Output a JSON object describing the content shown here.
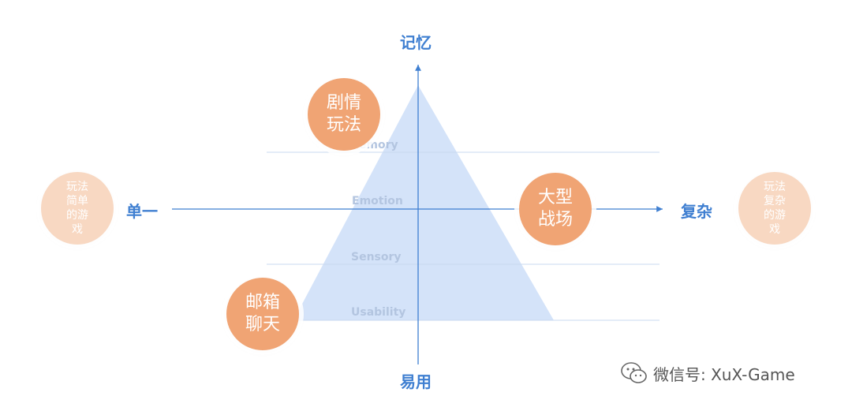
{
  "axes": {
    "top": "记忆",
    "bottom": "易用",
    "left": "单一",
    "right": "复杂"
  },
  "levels": [
    "Memory",
    "Emotion",
    "Sensory",
    "Usability"
  ],
  "circles": {
    "plot_gameplay": [
      "剧情",
      "玩法"
    ],
    "battlefield": [
      "大型",
      "战场"
    ],
    "mail_chat": [
      "邮箱",
      "聊天"
    ],
    "simple_games": [
      "玩法",
      "简单",
      "的游",
      "戏"
    ],
    "complex_games": [
      "玩法",
      "复杂",
      "的游",
      "戏"
    ]
  },
  "watermark": {
    "text": "微信号: XuX-Game",
    "icon": "wechat-icon"
  },
  "colors": {
    "axis": "#3f7fd1",
    "triangle": "#cfe0f8",
    "circle": "#f0a474",
    "circle_faint": "#f8d8c2"
  }
}
